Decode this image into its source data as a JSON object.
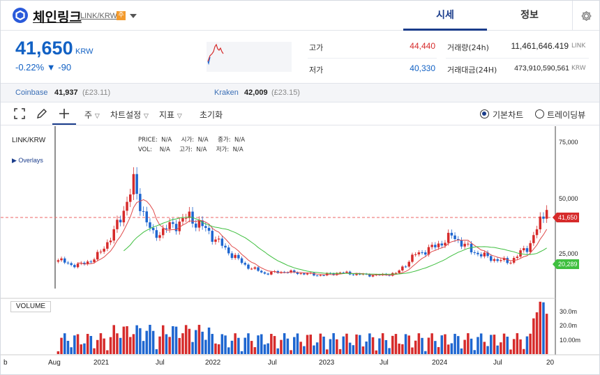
{
  "header": {
    "coin_name": "체인링크",
    "pair": "LINK/KRW",
    "badge": "주",
    "tabs": [
      {
        "label": "시세",
        "active": true
      },
      {
        "label": "정보",
        "active": false
      }
    ]
  },
  "summary": {
    "price": "41,650",
    "unit": "KRW",
    "change": "-0.22% ▼ -90",
    "high_label": "고가",
    "high_value": "44,440",
    "low_label": "저가",
    "low_value": "40,330",
    "volume_label": "거래량(24h)",
    "volume_value": "11,461,646.419",
    "volume_unit": "LINK",
    "amount_label": "거래대금(24H)",
    "amount_value": "473,910,590,561",
    "amount_unit": "KRW"
  },
  "exchanges": [
    {
      "name": "Coinbase",
      "price": "41,937",
      "ref": "(£23.11)"
    },
    {
      "name": "Kraken",
      "price": "42,009",
      "ref": "(£23.15)"
    }
  ],
  "toolbar": {
    "period": "주",
    "chart_settings": "차트설정",
    "indicator": "지표",
    "reset": "초기화",
    "basic_chart": "기본차트",
    "tradingview": "트레이딩뷰"
  },
  "chart": {
    "symbol": "LINK/KRW",
    "overlays": "Overlays",
    "info_row1": "PRICE:  N/A     시가:  N/A     종가:  N/A",
    "info_row2": "VOL:    N/A     고가:  N/A     저가:  N/A",
    "volume_label": "VOLUME",
    "price_ticks": [
      "75,000",
      "50,000",
      "25,000"
    ],
    "volume_ticks": [
      "30.0m",
      "20.0m",
      "10.00m"
    ],
    "x_ticks": [
      "b",
      "Aug",
      "2021",
      "Jul",
      "2022",
      "Jul",
      "2023",
      "Jul",
      "2024",
      "Jul",
      "20"
    ],
    "current_price_tag": "41,650",
    "ma_tag": "20,289",
    "colors": {
      "up": "#d62b2b",
      "down": "#1e66d0",
      "ma_short": "#e04b4b",
      "ma_long": "#3fbf3f",
      "accent": "#1a3c8b"
    }
  },
  "chart_data": {
    "type": "line",
    "title": "LINK/KRW",
    "x": [
      "2020-08",
      "2020-10",
      "2021-01",
      "2021-03",
      "2021-05",
      "2021-07",
      "2021-09",
      "2021-11",
      "2022-01",
      "2022-03",
      "2022-05",
      "2022-07",
      "2022-09",
      "2022-11",
      "2023-01",
      "2023-03",
      "2023-05",
      "2023-07",
      "2023-09",
      "2023-11",
      "2024-01",
      "2024-03",
      "2024-05",
      "2024-07",
      "2024-09",
      "2024-11",
      "2024-12"
    ],
    "series": [
      {
        "values": [
          15000,
          12000,
          16000,
          30000,
          55000,
          28000,
          33000,
          38000,
          30000,
          20000,
          12000,
          8000,
          9000,
          8000,
          7000,
          8500,
          7500,
          7000,
          8000,
          18000,
          22000,
          28000,
          20000,
          16000,
          14000,
          22000,
          41650
        ]
      }
    ],
    "ylim": [
      0,
      80000
    ],
    "current": 41650
  }
}
